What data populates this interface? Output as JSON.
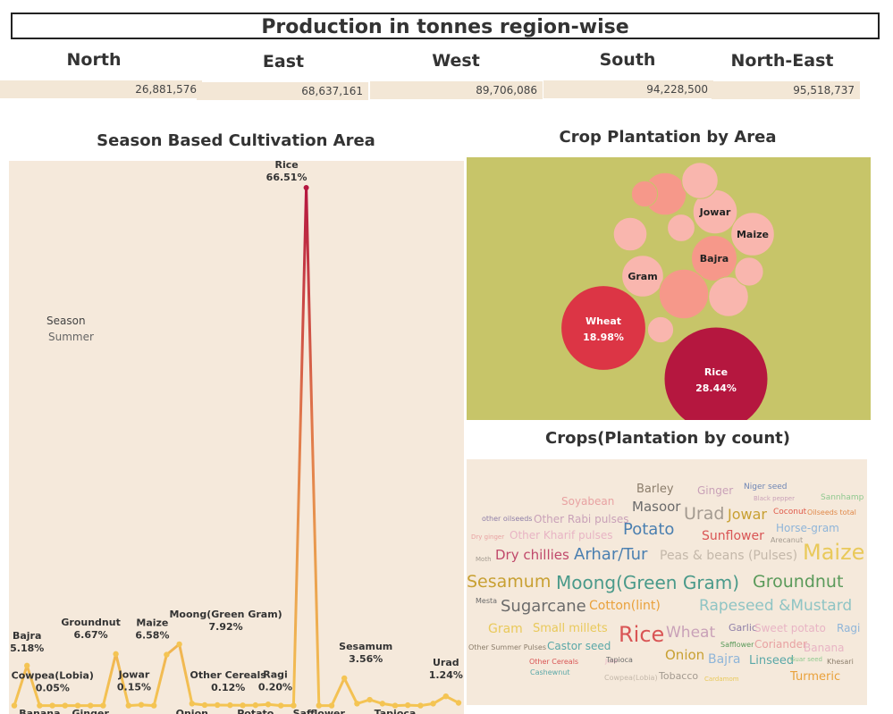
{
  "header": {
    "title": "Production in tonnes region-wise"
  },
  "regions": [
    {
      "name": "North",
      "value": "26,881,576"
    },
    {
      "name": "East",
      "value": "68,637,161"
    },
    {
      "name": "West",
      "value": "89,706,086"
    },
    {
      "name": "South",
      "value": "94,228,500"
    },
    {
      "name": "North-East",
      "value": "95,518,737"
    }
  ],
  "season_chart": {
    "title": "Season Based Cultivation Area",
    "legend_title": "Season",
    "legend_value": "Summer"
  },
  "bubble_chart": {
    "title": "Crop Plantation by Area"
  },
  "cloud_chart": {
    "title": "Crops(Plantation by count)"
  },
  "colors": {
    "panel_bg": "#f5e9db",
    "bubble_bg": "#c7c569",
    "line_low": "#f4c453",
    "line_high": "#b5173f"
  },
  "chart_data": [
    {
      "type": "line",
      "title": "Season Based Cultivation Area",
      "legend": "Season: Summer",
      "x": [
        "Bajra",
        "Banana",
        "Cowpea(Lobia)",
        "Groundnut",
        "Ginger",
        "Jowar",
        "Maize",
        "Onion",
        "Other Cereals",
        "Moong(Green Gram)",
        "Ragi",
        "Potato",
        "Rice",
        "Safflower",
        "Sesamum",
        "Tapioca",
        "Urad"
      ],
      "points": [
        {
          "x": "p0",
          "y": 0.05
        },
        {
          "x": "Bajra",
          "y": 5.18
        },
        {
          "x": "Banana",
          "y": 0.05
        },
        {
          "x": "p3",
          "y": 0.05
        },
        {
          "x": "Cowpea(Lobia)",
          "y": 0.05
        },
        {
          "x": "p5",
          "y": 0.05
        },
        {
          "x": "Ginger",
          "y": 0.05
        },
        {
          "x": "p7",
          "y": 0.05
        },
        {
          "x": "Groundnut",
          "y": 6.67
        },
        {
          "x": "p9",
          "y": 0.05
        },
        {
          "x": "Jowar",
          "y": 0.15
        },
        {
          "x": "p11",
          "y": 0.05
        },
        {
          "x": "Maize",
          "y": 6.58
        },
        {
          "x": "Moong(Green Gram)",
          "y": 7.92
        },
        {
          "x": "Onion",
          "y": 0.3
        },
        {
          "x": "p15",
          "y": 0.12
        },
        {
          "x": "Other Cereals",
          "y": 0.12
        },
        {
          "x": "p17",
          "y": 0.1
        },
        {
          "x": "p18",
          "y": 0.08
        },
        {
          "x": "Potato",
          "y": 0.1
        },
        {
          "x": "Ragi",
          "y": 0.2
        },
        {
          "x": "p21",
          "y": 0.05
        },
        {
          "x": "p22",
          "y": 0.05
        },
        {
          "x": "Rice",
          "y": 66.51
        },
        {
          "x": "Safflower",
          "y": 0.05
        },
        {
          "x": "p25",
          "y": 0.05
        },
        {
          "x": "Sesamum",
          "y": 3.56
        },
        {
          "x": "p27",
          "y": 0.3
        },
        {
          "x": "p28",
          "y": 0.8
        },
        {
          "x": "p29",
          "y": 0.3
        },
        {
          "x": "Tapioca",
          "y": 0.05
        },
        {
          "x": "p31",
          "y": 0.1
        },
        {
          "x": "p32",
          "y": 0.05
        },
        {
          "x": "p33",
          "y": 0.3
        },
        {
          "x": "Urad",
          "y": 1.24
        },
        {
          "x": "p35",
          "y": 0.4
        }
      ],
      "data_labels": [
        {
          "name": "Rice",
          "value": "66.51%"
        },
        {
          "name": "Bajra",
          "value": "5.18%"
        },
        {
          "name": "Cowpea(Lobia)",
          "value": "0.05%"
        },
        {
          "name": "Groundnut",
          "value": "6.67%"
        },
        {
          "name": "Maize",
          "value": "6.58%"
        },
        {
          "name": "Jowar",
          "value": "0.15%"
        },
        {
          "name": "Moong(Green Gram)",
          "value": "7.92%"
        },
        {
          "name": "Other Cereals",
          "value": "0.12%"
        },
        {
          "name": "Ragi",
          "value": "0.20%"
        },
        {
          "name": "Sesamum",
          "value": "3.56%"
        },
        {
          "name": "Urad",
          "value": "1.24%"
        }
      ],
      "bottom_labels": [
        "Banana",
        "Ginger",
        "Onion",
        "Potato",
        "Safflower",
        "Tapioca"
      ]
    },
    {
      "type": "bubble",
      "title": "Crop Plantation by Area",
      "bubbles": [
        {
          "name": "Rice",
          "value": "28.44%",
          "share": 28.44
        },
        {
          "name": "Wheat",
          "value": "18.98%",
          "share": 18.98
        },
        {
          "name": "Jowar",
          "value": "",
          "share": 5.2
        },
        {
          "name": "Maize",
          "value": "",
          "share": 5.0
        },
        {
          "name": "Bajra",
          "value": "",
          "share": 5.5
        },
        {
          "name": "Gram",
          "value": "",
          "share": 4.6
        },
        {
          "name": "",
          "value": "",
          "share": 6.5
        },
        {
          "name": "",
          "value": "",
          "share": 4.8
        },
        {
          "name": "",
          "value": "",
          "share": 3.0
        },
        {
          "name": "",
          "value": "",
          "share": 3.5
        },
        {
          "name": "",
          "value": "",
          "share": 4.2
        },
        {
          "name": "",
          "value": "",
          "share": 2.0
        },
        {
          "name": "",
          "value": "",
          "share": 2.2
        },
        {
          "name": "",
          "value": "",
          "share": 1.8
        },
        {
          "name": "",
          "value": "",
          "share": 1.8
        }
      ]
    }
  ],
  "word_cloud": [
    {
      "text": "Barley",
      "size": 13,
      "color": "#8b7d6b"
    },
    {
      "text": "Ginger",
      "size": 12,
      "color": "#c9a1b8"
    },
    {
      "text": "Niger seed",
      "size": 9,
      "color": "#6f86b5"
    },
    {
      "text": "Soyabean",
      "size": 12,
      "color": "#e8a2a2"
    },
    {
      "text": "Black pepper",
      "size": 7,
      "color": "#c9a1b8"
    },
    {
      "text": "Sannhamp",
      "size": 9,
      "color": "#8fc98f"
    },
    {
      "text": "Masoor",
      "size": 15,
      "color": "#6b6b6b"
    },
    {
      "text": "Urad",
      "size": 19,
      "color": "#a39a90"
    },
    {
      "text": "Jowar",
      "size": 16,
      "color": "#c8a032"
    },
    {
      "text": "Coconut",
      "size": 9,
      "color": "#e05a4a"
    },
    {
      "text": "Oilseeds total",
      "size": 8,
      "color": "#e0894a"
    },
    {
      "text": "other oilseeds",
      "size": 8,
      "color": "#8f7fa8"
    },
    {
      "text": "Other Rabi pulses",
      "size": 12,
      "color": "#c9a1b8"
    },
    {
      "text": "Potato",
      "size": 18,
      "color": "#4a7fb0"
    },
    {
      "text": "Horse-gram",
      "size": 12,
      "color": "#8fb5d9"
    },
    {
      "text": "Dry ginger",
      "size": 7,
      "color": "#e8a2a2"
    },
    {
      "text": "Other Kharif pulses",
      "size": 12,
      "color": "#e8b4c4"
    },
    {
      "text": "Sunflower",
      "size": 14,
      "color": "#d95555"
    },
    {
      "text": "Arecanut",
      "size": 8,
      "color": "#a39a90"
    },
    {
      "text": "Moth",
      "size": 7,
      "color": "#a39a90"
    },
    {
      "text": "Dry chillies",
      "size": 15,
      "color": "#c0496b"
    },
    {
      "text": "Arhar/Tur",
      "size": 18,
      "color": "#4a7fb0"
    },
    {
      "text": "Peas & beans (Pulses)",
      "size": 14,
      "color": "#c4b8aa"
    },
    {
      "text": "Maize",
      "size": 24,
      "color": "#e9c95a"
    },
    {
      "text": "Sesamum",
      "size": 19,
      "color": "#c8a032"
    },
    {
      "text": "Moong(Green Gram)",
      "size": 20,
      "color": "#4a9a8a"
    },
    {
      "text": "Groundnut",
      "size": 19,
      "color": "#5a9a5a"
    },
    {
      "text": "Mesta",
      "size": 8,
      "color": "#6b6b6b"
    },
    {
      "text": "Sugarcane",
      "size": 18,
      "color": "#6b6b6b"
    },
    {
      "text": "Cotton(lint)",
      "size": 14,
      "color": "#e9a13b"
    },
    {
      "text": "Rapeseed &Mustard",
      "size": 17,
      "color": "#8fc4c4"
    },
    {
      "text": "Gram",
      "size": 14,
      "color": "#e9c95a"
    },
    {
      "text": "Small millets",
      "size": 13,
      "color": "#e9c95a"
    },
    {
      "text": "Garlic",
      "size": 11,
      "color": "#8f7fa8"
    },
    {
      "text": "Sweet potato",
      "size": 12,
      "color": "#e8b4c4"
    },
    {
      "text": "Ragi",
      "size": 12,
      "color": "#8fb5d9"
    },
    {
      "text": "Rice",
      "size": 24,
      "color": "#d95555"
    },
    {
      "text": "Wheat",
      "size": 17,
      "color": "#c9a1b8"
    },
    {
      "text": "Safflower",
      "size": 8,
      "color": "#5a9a5a"
    },
    {
      "text": "Coriander",
      "size": 12,
      "color": "#e8a2a2"
    },
    {
      "text": "Banana",
      "size": 12,
      "color": "#e8b4c4"
    },
    {
      "text": "Other Summer Pulses",
      "size": 8,
      "color": "#8b7d6b"
    },
    {
      "text": "Castor seed",
      "size": 12,
      "color": "#5aa8a8"
    },
    {
      "text": "Onion",
      "size": 15,
      "color": "#c8a032"
    },
    {
      "text": "Bajra",
      "size": 14,
      "color": "#8fb5d9"
    },
    {
      "text": "Linseed",
      "size": 13,
      "color": "#5aa8a8"
    },
    {
      "text": "Guar seed",
      "size": 7,
      "color": "#8fc98f"
    },
    {
      "text": "Khesari",
      "size": 8,
      "color": "#8b7d6b"
    },
    {
      "text": "Other Cereals",
      "size": 8,
      "color": "#d95555"
    },
    {
      "text": "Jute",
      "size": 7,
      "color": "#e8b4c4"
    },
    {
      "text": "Turmeric",
      "size": 13,
      "color": "#e9a13b"
    },
    {
      "text": "Tapioca",
      "size": 8,
      "color": "#6b6b6b"
    },
    {
      "text": "Cashewnut",
      "size": 8,
      "color": "#5aa8a8"
    },
    {
      "text": "Cowpea(Lobia)",
      "size": 8,
      "color": "#c4b8aa"
    },
    {
      "text": "Tobacco",
      "size": 11,
      "color": "#a39a90"
    },
    {
      "text": "Cardamom",
      "size": 7,
      "color": "#e9c95a"
    }
  ]
}
